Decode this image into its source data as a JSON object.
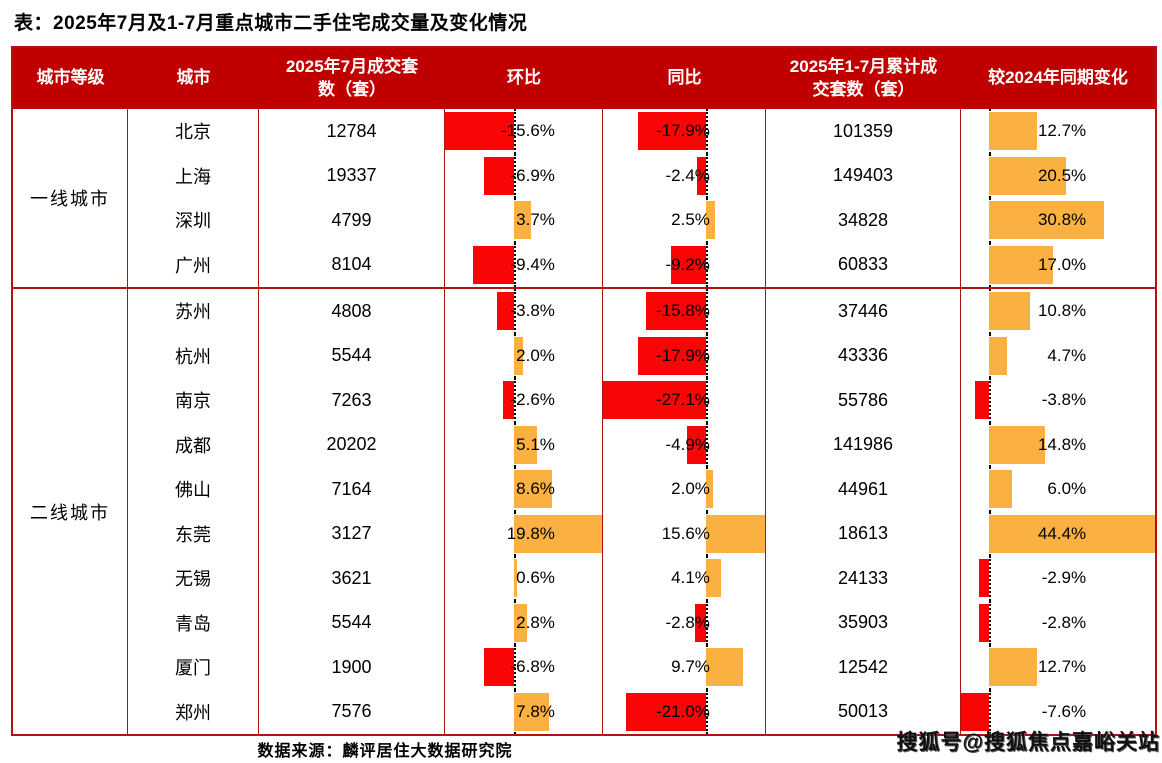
{
  "title": "表：2025年7月及1-7月重点城市二手住宅成交量及变化情况",
  "source_note": "数据来源：麟评居住大数据研究院",
  "watermark": "搜狐号@搜狐焦点嘉峪关站",
  "colors": {
    "header_bg": "#C00000",
    "table_border": "#B01212",
    "bar_negative": "#FA0505",
    "bar_positive": "#FBB042"
  },
  "chart_data": {
    "type": "table",
    "title": "表：2025年7月及1-7月重点城市二手住宅成交量及变化情况",
    "columns": [
      "城市等级",
      "城市",
      "2025年7月成交套\n数（套）",
      "环比",
      "同比",
      "2025年1-7月累计成\n交套数（套）",
      "较2024年同期变化"
    ],
    "bar_axis": {
      "mom": {
        "min": -15.6,
        "max": 19.8
      },
      "yoy": {
        "min": -27.1,
        "max": 15.6
      },
      "vs2024": {
        "min": -7.6,
        "max": 44.4
      }
    },
    "bar_style": {
      "negative_color": "#FA0505",
      "positive_color": "#FBB042",
      "zero_line": "dotted"
    },
    "groups": [
      {
        "tier": "一线城市",
        "rows": [
          {
            "city": "北京",
            "jul_units": 12784,
            "mom_pct": -15.6,
            "yoy_pct": -17.9,
            "cum_units": 101359,
            "vs2024_pct": 12.7
          },
          {
            "city": "上海",
            "jul_units": 19337,
            "mom_pct": -6.9,
            "yoy_pct": -2.4,
            "cum_units": 149403,
            "vs2024_pct": 20.5
          },
          {
            "city": "深圳",
            "jul_units": 4799,
            "mom_pct": 3.7,
            "yoy_pct": 2.5,
            "cum_units": 34828,
            "vs2024_pct": 30.8
          },
          {
            "city": "广州",
            "jul_units": 8104,
            "mom_pct": -9.4,
            "yoy_pct": -9.2,
            "cum_units": 60833,
            "vs2024_pct": 17.0
          }
        ]
      },
      {
        "tier": "二线城市",
        "rows": [
          {
            "city": "苏州",
            "jul_units": 4808,
            "mom_pct": -3.8,
            "yoy_pct": -15.8,
            "cum_units": 37446,
            "vs2024_pct": 10.8
          },
          {
            "city": "杭州",
            "jul_units": 5544,
            "mom_pct": 2.0,
            "yoy_pct": -17.9,
            "cum_units": 43336,
            "vs2024_pct": 4.7
          },
          {
            "city": "南京",
            "jul_units": 7263,
            "mom_pct": -2.6,
            "yoy_pct": -27.1,
            "cum_units": 55786,
            "vs2024_pct": -3.8
          },
          {
            "city": "成都",
            "jul_units": 20202,
            "mom_pct": 5.1,
            "yoy_pct": -4.9,
            "cum_units": 141986,
            "vs2024_pct": 14.8
          },
          {
            "city": "佛山",
            "jul_units": 7164,
            "mom_pct": 8.6,
            "yoy_pct": 2.0,
            "cum_units": 44961,
            "vs2024_pct": 6.0
          },
          {
            "city": "东莞",
            "jul_units": 3127,
            "mom_pct": 19.8,
            "yoy_pct": 15.6,
            "cum_units": 18613,
            "vs2024_pct": 44.4
          },
          {
            "city": "无锡",
            "jul_units": 3621,
            "mom_pct": 0.6,
            "yoy_pct": 4.1,
            "cum_units": 24133,
            "vs2024_pct": -2.9
          },
          {
            "city": "青岛",
            "jul_units": 5544,
            "mom_pct": 2.8,
            "yoy_pct": -2.8,
            "cum_units": 35903,
            "vs2024_pct": -2.8
          },
          {
            "city": "厦门",
            "jul_units": 1900,
            "mom_pct": -6.8,
            "yoy_pct": 9.7,
            "cum_units": 12542,
            "vs2024_pct": 12.7
          },
          {
            "city": "郑州",
            "jul_units": 7576,
            "mom_pct": 7.8,
            "yoy_pct": -21.0,
            "cum_units": 50013,
            "vs2024_pct": -7.6
          }
        ]
      }
    ],
    "source": "数据来源：麟评居住大数据研究院"
  }
}
